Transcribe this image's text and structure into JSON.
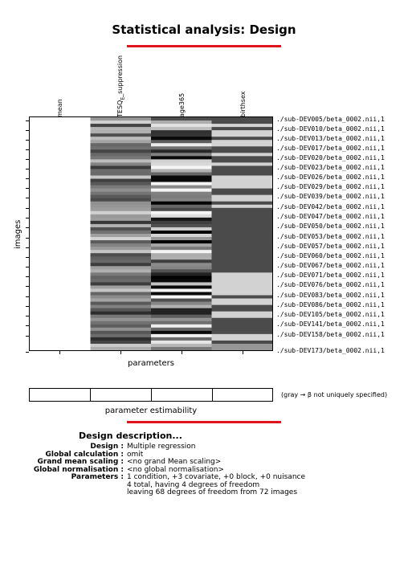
{
  "title": "Statistical analysis: Design",
  "columns": [
    "mean",
    "TESQ_E_suppression",
    "age365",
    "birthsex"
  ],
  "ylabel": "images",
  "xlabel": "parameters",
  "row_labels": [
    "./sub-DEV005/beta_0002.nii,1",
    "./sub-DEV010/beta_0002.nii,1",
    "./sub-DEV013/beta_0002.nii,1",
    "./sub-DEV017/beta_0002.nii,1",
    "./sub-DEV020/beta_0002.nii,1",
    "./sub-DEV023/beta_0002.nii,1",
    "./sub-DEV026/beta_0002.nii,1",
    "./sub-DEV029/beta_0002.nii,1",
    "./sub-DEV039/beta_0002.nii,1",
    "./sub-DEV042/beta_0002.nii,1",
    "./sub-DEV047/beta_0002.nii,1",
    "./sub-DEV050/beta_0002.nii,1",
    "./sub-DEV053/beta_0002.nii,1",
    "./sub-DEV057/beta_0002.nii,1",
    "./sub-DEV060/beta_0002.nii,1",
    "./sub-DEV067/beta_0002.nii,1",
    "./sub-DEV071/beta_0002.nii,1",
    "./sub-DEV076/beta_0002.nii,1",
    "./sub-DEV083/beta_0002.nii,1",
    "./sub-DEV086/beta_0002.nii,1",
    "./sub-DEV105/beta_0002.nii,1",
    "./sub-DEV141/beta_0002.nii,1",
    "./sub-DEV158/beta_0002.nii,1",
    "./sub-DEV173/beta_0002.nii,1"
  ],
  "n_images": 72,
  "estimability_note": "(gray → β not uniquely specified)",
  "estimability_label": "parameter estimability",
  "description_title": "Design description...",
  "description": [
    {
      "key": "Design :",
      "lines": [
        "Multiple regression"
      ]
    },
    {
      "key": "Global calculation :",
      "lines": [
        "omit"
      ]
    },
    {
      "key": "Grand mean scaling :",
      "lines": [
        "<no grand Mean scaling>"
      ]
    },
    {
      "key": "Global normalisation :",
      "lines": [
        "<no global normalisation>"
      ]
    },
    {
      "key": "Parameters :",
      "lines": [
        "1 condition, +3 covariate, +0 block, +0 nuisance",
        "4 total, having 4 degrees of freedom",
        "leaving 68 degrees of freedom from 72 images"
      ]
    }
  ],
  "colors": {
    "accent_rule": "#e0141e"
  }
}
